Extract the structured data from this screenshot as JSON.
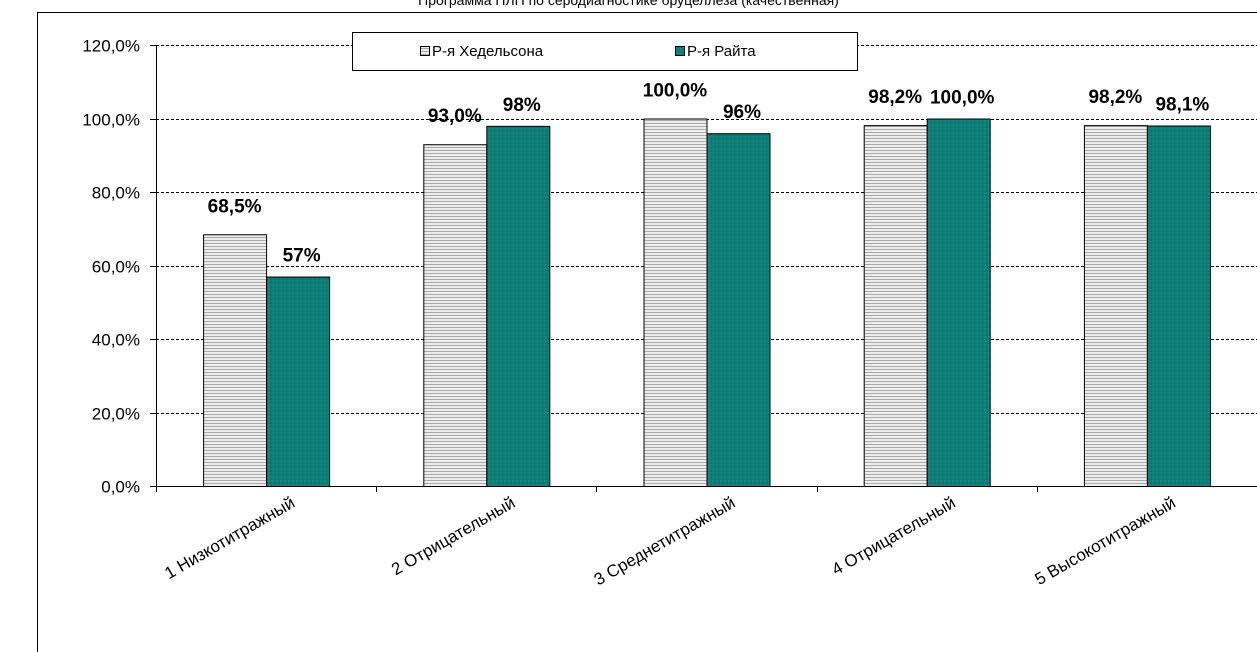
{
  "chart_data": {
    "type": "bar",
    "title": "Программа ПЛП по серодиагностике  бруцеллеза (качественная)",
    "categories": [
      "1 Низкотитражный",
      "2 Отрицательный",
      "3 Среднетитражный",
      "4 Отрицательный",
      "5 Высокотитражный"
    ],
    "series": [
      {
        "name": "Р-я Хедельсона",
        "values": [
          68.5,
          93.0,
          100.0,
          98.2,
          98.2
        ],
        "labels": [
          "68,5%",
          "93,0%",
          "100,0%",
          "98,2%",
          "98,2%"
        ],
        "color": "#e4e4e4",
        "pattern": "horizontal-stripes"
      },
      {
        "name": "Р-я Райта",
        "values": [
          57,
          98,
          96,
          100.0,
          98.1
        ],
        "labels": [
          "57%",
          "98%",
          "96%",
          "100,0%",
          "98,1%"
        ],
        "color": "#0d7f78",
        "pattern": "dots"
      }
    ],
    "yticks": [
      "0,0%",
      "20,0%",
      "40,0%",
      "60,0%",
      "80,0%",
      "100,0%",
      "120,0%"
    ],
    "ylim": [
      0,
      120
    ],
    "grid": true,
    "legend": "top-center"
  }
}
